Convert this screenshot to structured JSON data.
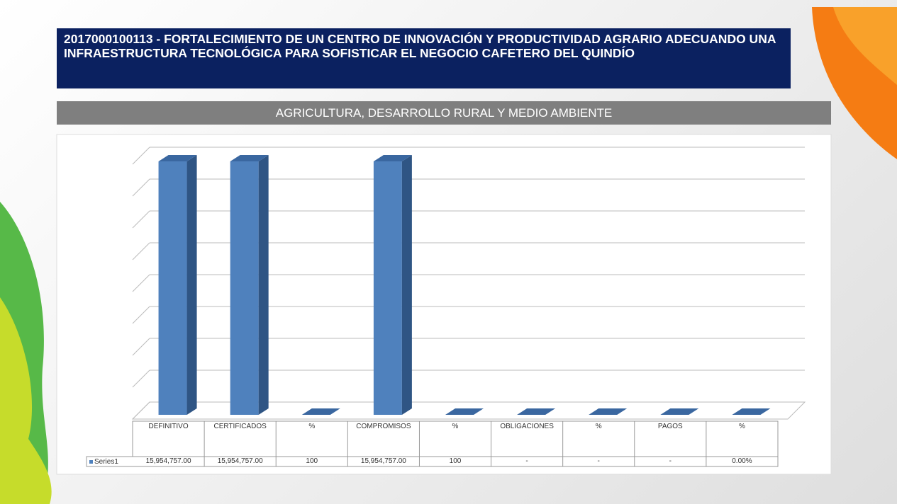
{
  "chart_data": {
    "type": "bar",
    "title": "2017000100113 - FORTALECIMIENTO DE UN CENTRO DE INNOVACIÓN Y PRODUCTIVIDAD AGRARIO ADECUANDO UNA INFRAESTRUCTURA TECNOLÓGICA PARA SOFISTICAR EL NEGOCIO CAFETERO DEL QUINDÍO",
    "subtitle": "AGRICULTURA, DESARROLLO RURAL Y MEDIO AMBIENTE",
    "categories": [
      "DEFINITIVO",
      "CERTIFICADOS",
      "%",
      "COMPROMISOS",
      "%",
      "OBLIGACIONES",
      "%",
      "PAGOS",
      "%"
    ],
    "series": [
      {
        "name": "Series1",
        "color": "#4f81bd",
        "values": [
          15954757,
          15954757,
          100,
          15954757,
          100,
          0,
          0,
          0,
          0
        ],
        "value_labels": [
          "15,954,757.00",
          "15,954,757.00",
          "100",
          "15,954,757.00",
          "100",
          "-",
          "-",
          "-",
          "0.00%"
        ]
      }
    ],
    "ylim": [
      0,
      16000000
    ],
    "yticks": [
      0,
      2000000,
      4000000,
      6000000,
      8000000,
      10000000,
      12000000,
      14000000,
      16000000
    ],
    "grid": true
  }
}
